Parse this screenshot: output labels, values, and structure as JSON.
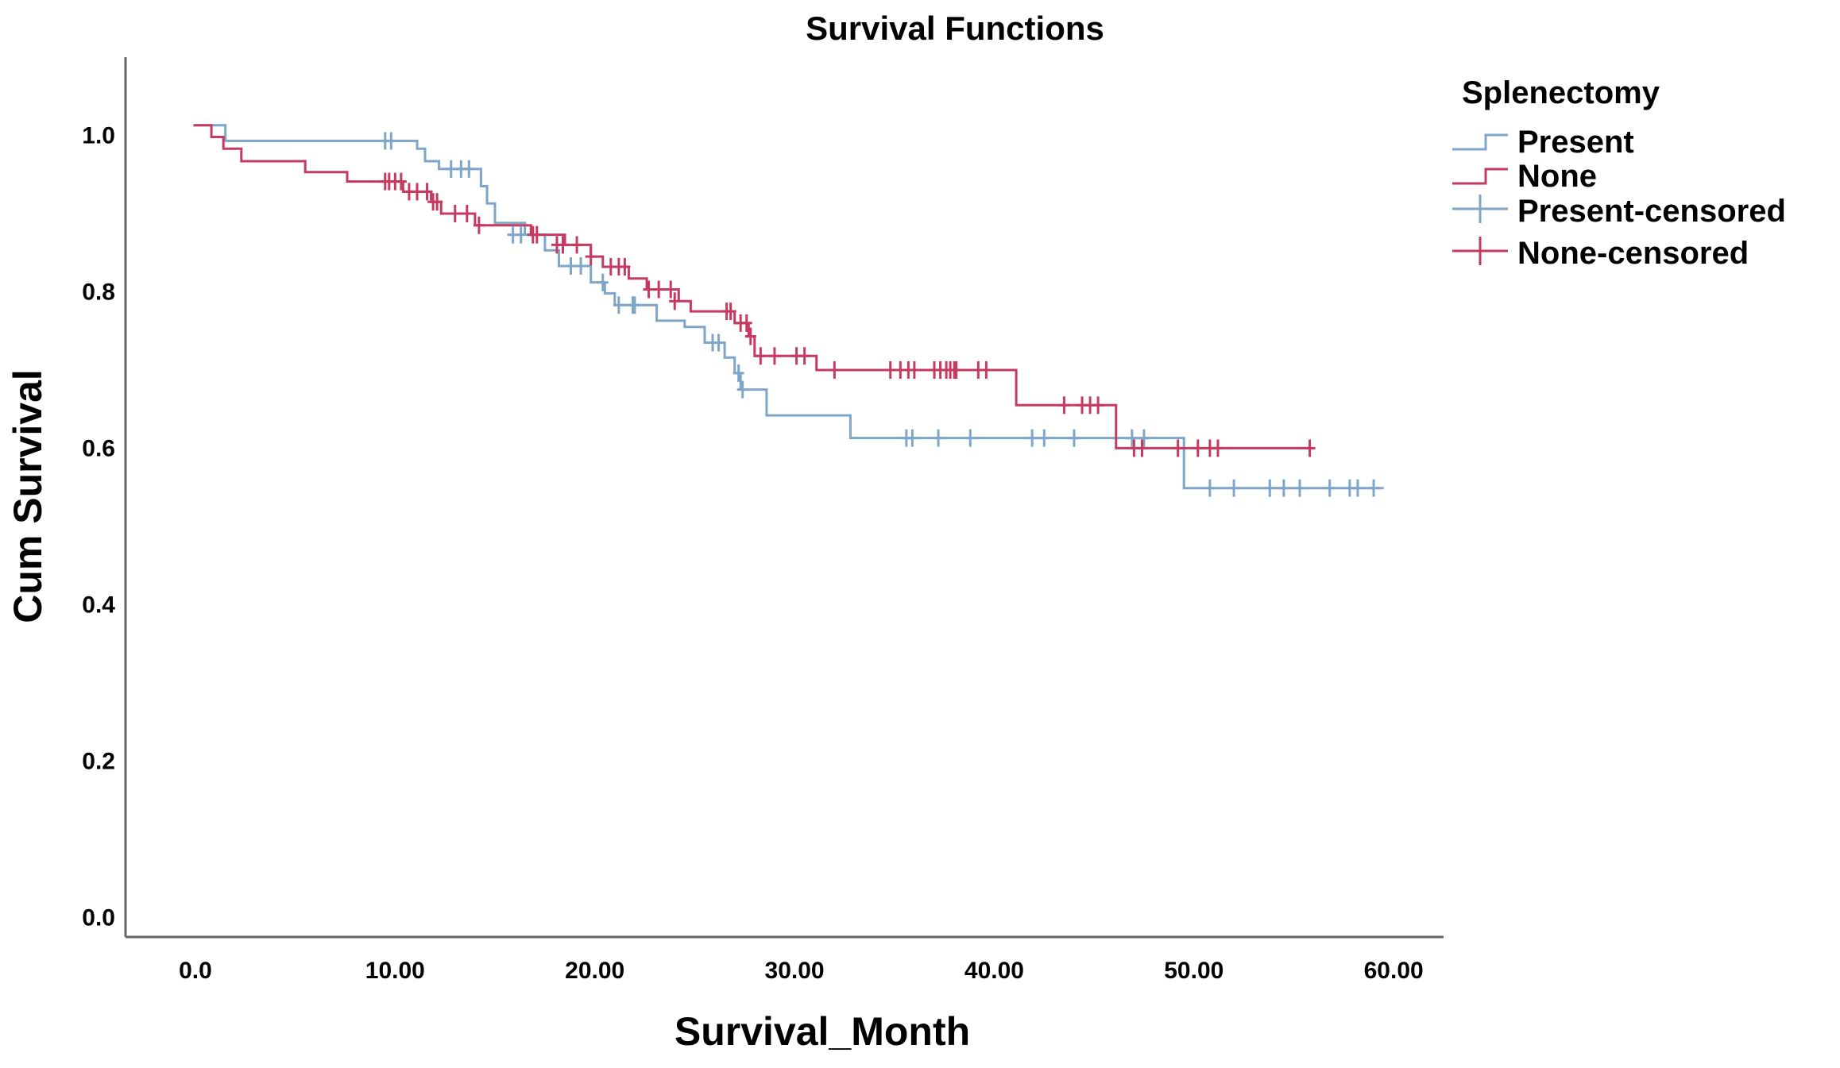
{
  "chart_data": {
    "type": "line",
    "subtype": "kaplan-meier-step",
    "title": "Survival Functions",
    "xlabel": "Survival_Month",
    "ylabel": "Cum Survival",
    "xlim": [
      -3.5,
      62.5
    ],
    "ylim": [
      -0.025,
      1.1
    ],
    "x_ticks": [
      {
        "value": 0,
        "label": "0.0"
      },
      {
        "value": 10,
        "label": "10.00"
      },
      {
        "value": 20,
        "label": "20.00"
      },
      {
        "value": 30,
        "label": "30.00"
      },
      {
        "value": 40,
        "label": "40.00"
      },
      {
        "value": 50,
        "label": "50.00"
      },
      {
        "value": 60,
        "label": "60.00"
      }
    ],
    "y_ticks": [
      {
        "value": 0.0,
        "label": "0.0"
      },
      {
        "value": 0.2,
        "label": "0.2"
      },
      {
        "value": 0.4,
        "label": "0.4"
      },
      {
        "value": 0.6,
        "label": "0.6"
      },
      {
        "value": 0.8,
        "label": "0.8"
      },
      {
        "value": 1.0,
        "label": "1.0"
      }
    ],
    "grid": false,
    "legend": {
      "title": "Splenectomy",
      "placement": "top-right",
      "entries": [
        {
          "label": "Present",
          "series": "present",
          "kind": "step"
        },
        {
          "label": "None",
          "series": "none",
          "kind": "step"
        },
        {
          "label": "Present-censored",
          "series": "present",
          "kind": "censor"
        },
        {
          "label": "None-censored",
          "series": "none",
          "kind": "censor"
        }
      ]
    },
    "series": [
      {
        "key": "present",
        "color": "#7fa6c9",
        "steps": [
          [
            -0.1,
            1.013
          ],
          [
            1.5,
            1.013
          ],
          [
            1.5,
            0.993
          ],
          [
            11.1,
            0.993
          ],
          [
            11.1,
            0.983
          ],
          [
            11.5,
            0.983
          ],
          [
            11.5,
            0.967
          ],
          [
            12.2,
            0.967
          ],
          [
            12.2,
            0.957
          ],
          [
            14.3,
            0.957
          ],
          [
            14.3,
            0.935
          ],
          [
            14.6,
            0.935
          ],
          [
            14.6,
            0.913
          ],
          [
            15.0,
            0.913
          ],
          [
            15.0,
            0.888
          ],
          [
            16.5,
            0.888
          ],
          [
            16.5,
            0.873
          ],
          [
            17.5,
            0.873
          ],
          [
            17.5,
            0.853
          ],
          [
            18.2,
            0.853
          ],
          [
            18.2,
            0.833
          ],
          [
            19.8,
            0.833
          ],
          [
            19.8,
            0.812
          ],
          [
            20.5,
            0.812
          ],
          [
            20.5,
            0.798
          ],
          [
            21.0,
            0.798
          ],
          [
            21.0,
            0.783
          ],
          [
            23.1,
            0.783
          ],
          [
            23.1,
            0.763
          ],
          [
            24.5,
            0.763
          ],
          [
            24.5,
            0.755
          ],
          [
            25.5,
            0.755
          ],
          [
            25.5,
            0.735
          ],
          [
            26.5,
            0.735
          ],
          [
            26.5,
            0.716
          ],
          [
            27.0,
            0.716
          ],
          [
            27.0,
            0.696
          ],
          [
            27.3,
            0.696
          ],
          [
            27.3,
            0.675
          ],
          [
            28.6,
            0.675
          ],
          [
            28.6,
            0.642
          ],
          [
            32.8,
            0.642
          ],
          [
            32.8,
            0.613
          ],
          [
            49.5,
            0.613
          ],
          [
            49.5,
            0.549
          ],
          [
            59.5,
            0.549
          ]
        ],
        "censored": [
          [
            9.5,
            0.993
          ],
          [
            9.8,
            0.993
          ],
          [
            12.8,
            0.957
          ],
          [
            13.3,
            0.957
          ],
          [
            13.7,
            0.957
          ],
          [
            15.9,
            0.873
          ],
          [
            16.3,
            0.873
          ],
          [
            18.8,
            0.833
          ],
          [
            19.3,
            0.833
          ],
          [
            20.4,
            0.812
          ],
          [
            21.2,
            0.783
          ],
          [
            21.9,
            0.783
          ],
          [
            22.0,
            0.783
          ],
          [
            25.9,
            0.735
          ],
          [
            26.2,
            0.735
          ],
          [
            27.2,
            0.696
          ],
          [
            27.4,
            0.675
          ],
          [
            35.6,
            0.613
          ],
          [
            35.9,
            0.613
          ],
          [
            37.2,
            0.613
          ],
          [
            38.8,
            0.613
          ],
          [
            41.9,
            0.613
          ],
          [
            42.5,
            0.613
          ],
          [
            44.0,
            0.613
          ],
          [
            46.9,
            0.613
          ],
          [
            47.5,
            0.613
          ],
          [
            50.8,
            0.549
          ],
          [
            52.0,
            0.549
          ],
          [
            53.8,
            0.549
          ],
          [
            54.5,
            0.549
          ],
          [
            55.3,
            0.549
          ],
          [
            56.8,
            0.549
          ],
          [
            57.8,
            0.549
          ],
          [
            58.2,
            0.549
          ],
          [
            59.0,
            0.549
          ]
        ]
      },
      {
        "key": "none",
        "color": "#c63a62",
        "steps": [
          [
            -0.1,
            1.013
          ],
          [
            0.8,
            1.013
          ],
          [
            0.8,
            0.998
          ],
          [
            1.4,
            0.998
          ],
          [
            1.4,
            0.983
          ],
          [
            2.3,
            0.983
          ],
          [
            2.3,
            0.967
          ],
          [
            5.5,
            0.967
          ],
          [
            5.5,
            0.953
          ],
          [
            7.6,
            0.953
          ],
          [
            7.6,
            0.941
          ],
          [
            10.4,
            0.941
          ],
          [
            10.4,
            0.928
          ],
          [
            11.8,
            0.928
          ],
          [
            11.8,
            0.915
          ],
          [
            12.3,
            0.915
          ],
          [
            12.3,
            0.9
          ],
          [
            14.0,
            0.9
          ],
          [
            14.0,
            0.885
          ],
          [
            16.8,
            0.885
          ],
          [
            16.8,
            0.873
          ],
          [
            18.5,
            0.873
          ],
          [
            18.5,
            0.86
          ],
          [
            19.8,
            0.86
          ],
          [
            19.8,
            0.845
          ],
          [
            20.4,
            0.845
          ],
          [
            20.4,
            0.832
          ],
          [
            21.7,
            0.832
          ],
          [
            21.7,
            0.817
          ],
          [
            22.6,
            0.817
          ],
          [
            22.6,
            0.803
          ],
          [
            24.2,
            0.803
          ],
          [
            24.2,
            0.788
          ],
          [
            24.8,
            0.788
          ],
          [
            24.8,
            0.775
          ],
          [
            27.0,
            0.775
          ],
          [
            27.0,
            0.76
          ],
          [
            27.7,
            0.76
          ],
          [
            27.7,
            0.743
          ],
          [
            28.0,
            0.743
          ],
          [
            28.0,
            0.718
          ],
          [
            31.1,
            0.718
          ],
          [
            31.1,
            0.7
          ],
          [
            41.1,
            0.7
          ],
          [
            41.1,
            0.655
          ],
          [
            46.1,
            0.655
          ],
          [
            46.1,
            0.6
          ],
          [
            55.9,
            0.6
          ]
        ],
        "censored": [
          [
            9.5,
            0.941
          ],
          [
            9.7,
            0.941
          ],
          [
            10.0,
            0.941
          ],
          [
            10.3,
            0.941
          ],
          [
            10.7,
            0.928
          ],
          [
            11.1,
            0.928
          ],
          [
            11.6,
            0.928
          ],
          [
            11.9,
            0.915
          ],
          [
            12.1,
            0.915
          ],
          [
            13.0,
            0.9
          ],
          [
            13.6,
            0.9
          ],
          [
            14.2,
            0.885
          ],
          [
            16.9,
            0.873
          ],
          [
            17.1,
            0.873
          ],
          [
            18.1,
            0.86
          ],
          [
            18.4,
            0.86
          ],
          [
            19.1,
            0.86
          ],
          [
            19.8,
            0.845
          ],
          [
            20.8,
            0.832
          ],
          [
            21.2,
            0.832
          ],
          [
            21.5,
            0.832
          ],
          [
            22.7,
            0.803
          ],
          [
            23.2,
            0.803
          ],
          [
            23.8,
            0.803
          ],
          [
            24.0,
            0.788
          ],
          [
            26.6,
            0.775
          ],
          [
            26.8,
            0.775
          ],
          [
            27.3,
            0.76
          ],
          [
            27.6,
            0.76
          ],
          [
            27.8,
            0.743
          ],
          [
            28.3,
            0.718
          ],
          [
            29.0,
            0.718
          ],
          [
            30.1,
            0.718
          ],
          [
            30.5,
            0.718
          ],
          [
            32.0,
            0.7
          ],
          [
            34.8,
            0.7
          ],
          [
            35.3,
            0.7
          ],
          [
            35.7,
            0.7
          ],
          [
            36.0,
            0.7
          ],
          [
            37.0,
            0.7
          ],
          [
            37.3,
            0.7
          ],
          [
            37.6,
            0.7
          ],
          [
            37.8,
            0.7
          ],
          [
            38.0,
            0.7
          ],
          [
            38.1,
            0.7
          ],
          [
            39.2,
            0.7
          ],
          [
            39.6,
            0.7
          ],
          [
            43.5,
            0.655
          ],
          [
            44.4,
            0.655
          ],
          [
            44.8,
            0.655
          ],
          [
            45.2,
            0.655
          ],
          [
            47.0,
            0.6
          ],
          [
            47.4,
            0.6
          ],
          [
            49.2,
            0.6
          ],
          [
            50.2,
            0.6
          ],
          [
            50.8,
            0.6
          ],
          [
            51.2,
            0.6
          ],
          [
            55.8,
            0.6
          ]
        ]
      }
    ]
  }
}
